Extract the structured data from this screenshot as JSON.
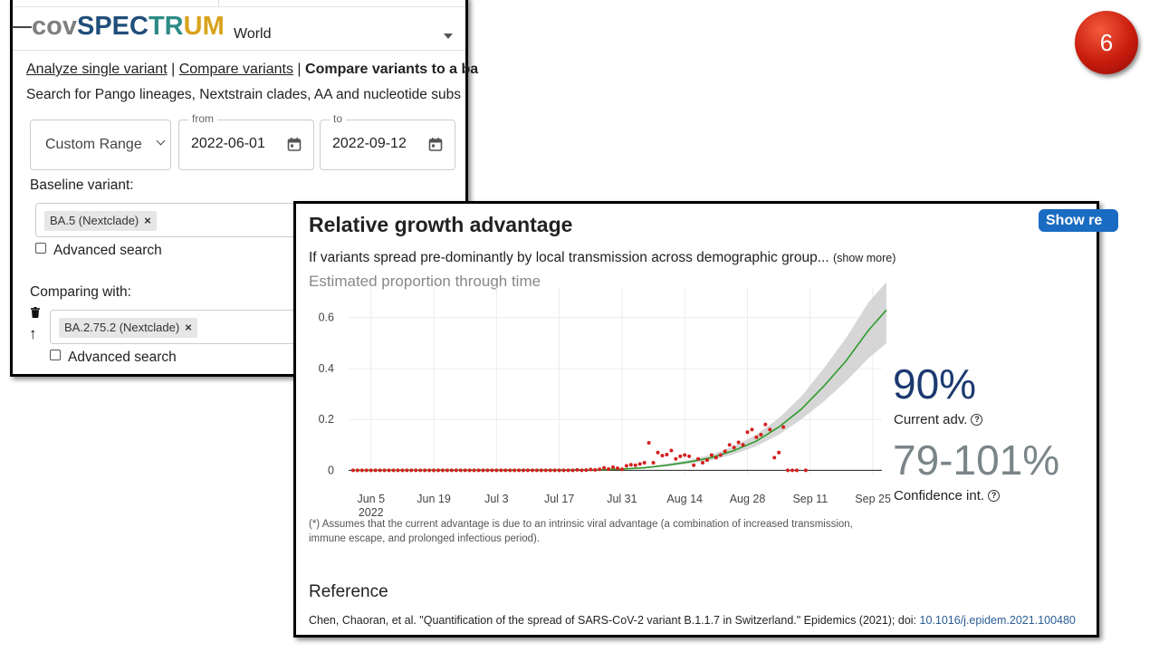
{
  "slide": {
    "number": "6"
  },
  "header": {
    "logo": {
      "part1": "cov",
      "part2": "SPEC",
      "part3": "TR",
      "part4": "UM"
    },
    "region": "World"
  },
  "nav": {
    "analyze_single": "Analyze single variant",
    "sep1": " | ",
    "compare": "Compare variants",
    "sep2": " | ",
    "compare_baseline": "Compare variants to a ba"
  },
  "search_hint": "Search for Pango lineages, Nextstrain clades, AA and nucleotide subs",
  "date_range": {
    "mode": "Custom Range",
    "from_label": "from",
    "from_value": "2022-06-01",
    "to_label": "to",
    "to_value": "2022-09-12"
  },
  "baseline": {
    "label": "Baseline variant:",
    "chip": "BA.5 (Nextclade)",
    "chip_remove": "×",
    "advanced": "Advanced search"
  },
  "comparing": {
    "label": "Comparing with:",
    "chip": "BA.2.75.2 (Nextclade)",
    "chip_remove": "×",
    "advanced": "Advanced search"
  },
  "growth": {
    "title": "Relative growth advantage",
    "show_button": "Show re",
    "description": "If variants spread pre-dominantly by local transmission across demographic group...",
    "show_more": "(show more)",
    "chart_title": "Estimated proportion through time",
    "current_adv_value": "90%",
    "current_adv_label": "Current adv.",
    "ci_value": "79-101%",
    "ci_label": "Confidence int.",
    "help_icon": "?",
    "footnote": "(*) Assumes that the current advantage is due to an intrinsic viral advantage (a combination of increased transmission, immune escape, and prolonged infectious period).",
    "reference_title": "Reference",
    "reference_text": "Chen, Chaoran, et al. \"Quantification of the spread of SARS-CoV-2 variant B.1.1.7 in Switzerland.\" Epidemics (2021); doi: ",
    "reference_doi": "10.1016/j.epidem.2021.100480"
  },
  "chart_data": {
    "type": "scatter",
    "title": "Estimated proportion through time",
    "x_unit": "days since Jun 1, 2022",
    "xlim": [
      -1,
      118
    ],
    "ylim": [
      -0.02,
      0.72
    ],
    "x_ticks": [
      {
        "x": 4,
        "label": "Jun 5",
        "sub": "2022"
      },
      {
        "x": 18,
        "label": "Jun 19"
      },
      {
        "x": 32,
        "label": "Jul 3"
      },
      {
        "x": 46,
        "label": "Jul 17"
      },
      {
        "x": 60,
        "label": "Jul 31"
      },
      {
        "x": 74,
        "label": "Aug 14"
      },
      {
        "x": 88,
        "label": "Aug 28"
      },
      {
        "x": 102,
        "label": "Sep 11"
      },
      {
        "x": 116,
        "label": "Sep 25"
      }
    ],
    "y_ticks": [
      0,
      0.2,
      0.4,
      0.6
    ],
    "fit_line": [
      [
        0,
        0
      ],
      [
        55,
        0.002
      ],
      [
        60,
        0.005
      ],
      [
        65,
        0.01
      ],
      [
        70,
        0.02
      ],
      [
        75,
        0.033
      ],
      [
        80,
        0.05
      ],
      [
        85,
        0.078
      ],
      [
        90,
        0.115
      ],
      [
        95,
        0.17
      ],
      [
        100,
        0.24
      ],
      [
        105,
        0.33
      ],
      [
        110,
        0.43
      ],
      [
        115,
        0.55
      ],
      [
        119,
        0.63
      ]
    ],
    "ci_band": [
      [
        60,
        0.003,
        0.007
      ],
      [
        65,
        0.007,
        0.014
      ],
      [
        70,
        0.015,
        0.026
      ],
      [
        75,
        0.026,
        0.041
      ],
      [
        80,
        0.04,
        0.062
      ],
      [
        85,
        0.063,
        0.095
      ],
      [
        90,
        0.095,
        0.14
      ],
      [
        95,
        0.14,
        0.205
      ],
      [
        100,
        0.2,
        0.29
      ],
      [
        105,
        0.27,
        0.4
      ],
      [
        110,
        0.35,
        0.52
      ],
      [
        115,
        0.44,
        0.66
      ],
      [
        119,
        0.5,
        0.74
      ]
    ],
    "points": [
      [
        0,
        0
      ],
      [
        1,
        0
      ],
      [
        2,
        0
      ],
      [
        3,
        0
      ],
      [
        4,
        0
      ],
      [
        5,
        0
      ],
      [
        6,
        0
      ],
      [
        7,
        0
      ],
      [
        8,
        0
      ],
      [
        9,
        0
      ],
      [
        10,
        0
      ],
      [
        11,
        0
      ],
      [
        12,
        0
      ],
      [
        13,
        0
      ],
      [
        14,
        0
      ],
      [
        15,
        0
      ],
      [
        16,
        0
      ],
      [
        17,
        0
      ],
      [
        18,
        0
      ],
      [
        19,
        0
      ],
      [
        20,
        0
      ],
      [
        21,
        0
      ],
      [
        22,
        0
      ],
      [
        23,
        0
      ],
      [
        24,
        0
      ],
      [
        25,
        0
      ],
      [
        26,
        0
      ],
      [
        27,
        0
      ],
      [
        28,
        0
      ],
      [
        29,
        0
      ],
      [
        30,
        0
      ],
      [
        31,
        0
      ],
      [
        32,
        0
      ],
      [
        33,
        0
      ],
      [
        34,
        0
      ],
      [
        35,
        0
      ],
      [
        36,
        0
      ],
      [
        37,
        0
      ],
      [
        38,
        0
      ],
      [
        39,
        0
      ],
      [
        40,
        0
      ],
      [
        41,
        0
      ],
      [
        42,
        0
      ],
      [
        43,
        0
      ],
      [
        44,
        0
      ],
      [
        45,
        0
      ],
      [
        46,
        0
      ],
      [
        47,
        0
      ],
      [
        48,
        0
      ],
      [
        49,
        0
      ],
      [
        50,
        0.002
      ],
      [
        51,
        0
      ],
      [
        52,
        0.001
      ],
      [
        53,
        0.003
      ],
      [
        54,
        0.002
      ],
      [
        55,
        0.004
      ],
      [
        56,
        0.01
      ],
      [
        57,
        0.005
      ],
      [
        58,
        0.012
      ],
      [
        59,
        0.008
      ],
      [
        60,
        0.004
      ],
      [
        61,
        0.018
      ],
      [
        62,
        0.022
      ],
      [
        63,
        0.02
      ],
      [
        64,
        0.025
      ],
      [
        65,
        0.03
      ],
      [
        66,
        0.108
      ],
      [
        67,
        0.03
      ],
      [
        68,
        0.07
      ],
      [
        69,
        0.058
      ],
      [
        70,
        0.062
      ],
      [
        71,
        0.078
      ],
      [
        72,
        0.045
      ],
      [
        73,
        0.055
      ],
      [
        74,
        0.06
      ],
      [
        75,
        0.055
      ],
      [
        76,
        0.02
      ],
      [
        77,
        0.045
      ],
      [
        78,
        0.03
      ],
      [
        79,
        0.04
      ],
      [
        80,
        0.06
      ],
      [
        81,
        0.05
      ],
      [
        82,
        0.06
      ],
      [
        83,
        0.075
      ],
      [
        84,
        0.1
      ],
      [
        85,
        0.09
      ],
      [
        86,
        0.11
      ],
      [
        87,
        0.1
      ],
      [
        88,
        0.15
      ],
      [
        89,
        0.16
      ],
      [
        90,
        0.13
      ],
      [
        91,
        0.14
      ],
      [
        92,
        0.18
      ],
      [
        93,
        0.16
      ],
      [
        94,
        0.05
      ],
      [
        95,
        0.07
      ],
      [
        96,
        0.17
      ],
      [
        97,
        0
      ],
      [
        98,
        0
      ],
      [
        99,
        0
      ],
      [
        101,
        0
      ]
    ]
  }
}
